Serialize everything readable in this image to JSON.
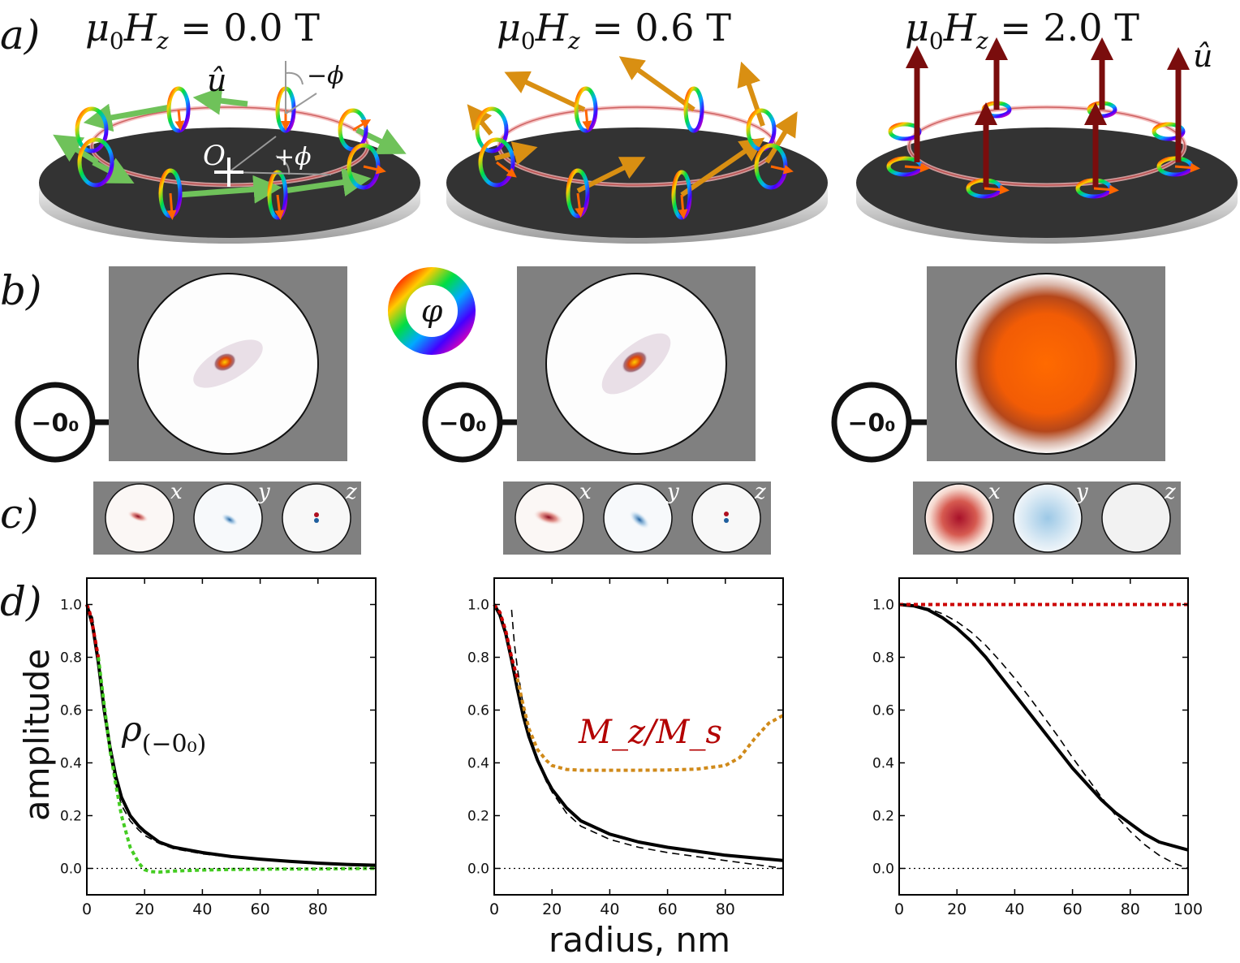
{
  "panel_labels": [
    "a)",
    "b)",
    "c)",
    "d)"
  ],
  "fields": [
    {
      "label": "μ₀H₂ = 0.0 T",
      "main": "μ",
      "sub0": "0",
      "H": "H",
      "subz": "z",
      "rest": " = 0.0 T"
    },
    {
      "label": "μ₀H₂ = 0.6 T",
      "main": "μ",
      "sub0": "0",
      "H": "H",
      "subz": "z",
      "rest": " = 0.6 T"
    },
    {
      "label": "μ₀H₂ = 2.0 T",
      "main": "μ",
      "sub0": "0",
      "H": "H",
      "subz": "z",
      "rest": " = 2.0 T"
    }
  ],
  "panel_a": {
    "u_hat_left": "û",
    "u_hat_right": "û",
    "minus_phi": "−ϕ",
    "plus_phi": "+ϕ",
    "origin": "O",
    "colors": {
      "disk_top": "#333333",
      "disk_side": "#d9d9d9",
      "green_arrow": "#6fc25a",
      "orange_arrow": "#d98f12",
      "red_arrow": "#7a0d0d",
      "ring_glow": "#f2b3b3"
    }
  },
  "panel_b": {
    "mode_label": "−0₀",
    "colorwheel_symbol": "φ",
    "background": "#808080"
  },
  "panel_c": {
    "components": [
      "x",
      "y",
      "z"
    ]
  },
  "chart_data": [
    {
      "type": "line",
      "xlabel": "",
      "ylabel": "amplitude",
      "xlim": [
        0,
        100
      ],
      "ylim": [
        -0.1,
        1.1
      ],
      "yticks": [
        "0.0",
        "0.2",
        "0.4",
        "0.6",
        "0.8",
        "1.0"
      ],
      "xticks": [
        "0",
        "20",
        "40",
        "60",
        "80"
      ],
      "annotation": {
        "text_main": "ρ",
        "text_sub": "(−0₀)"
      },
      "series": [
        {
          "style": "solid-black",
          "x": [
            0,
            2,
            4,
            6,
            8,
            10,
            12,
            15,
            18,
            20,
            25,
            30,
            40,
            50,
            60,
            70,
            80,
            90,
            100
          ],
          "y": [
            1.0,
            0.92,
            0.78,
            0.6,
            0.46,
            0.35,
            0.27,
            0.2,
            0.16,
            0.14,
            0.1,
            0.08,
            0.06,
            0.045,
            0.035,
            0.027,
            0.02,
            0.015,
            0.012
          ]
        },
        {
          "style": "dashed-black",
          "x": [
            0,
            2,
            4,
            6,
            8,
            10,
            12,
            15,
            18,
            20,
            25,
            30,
            40,
            50,
            60,
            70,
            80,
            90,
            100
          ],
          "y": [
            1.0,
            0.95,
            0.8,
            0.6,
            0.43,
            0.32,
            0.24,
            0.18,
            0.145,
            0.125,
            0.095,
            0.075,
            0.055,
            0.043,
            0.033,
            0.025,
            0.018,
            0.012,
            0.008
          ]
        },
        {
          "style": "dotted-red",
          "x": [
            0,
            1,
            2,
            3,
            4
          ],
          "y": [
            1.0,
            0.97,
            0.92,
            0.86,
            0.8
          ]
        },
        {
          "style": "dotted-green",
          "x": [
            4,
            6,
            8,
            10,
            12,
            15,
            18,
            20,
            22,
            25,
            30,
            40,
            50,
            60,
            70,
            80,
            90,
            100
          ],
          "y": [
            0.8,
            0.62,
            0.45,
            0.32,
            0.2,
            0.08,
            0.02,
            -0.005,
            -0.012,
            -0.014,
            -0.01,
            -0.006,
            -0.004,
            -0.003,
            -0.002,
            -0.002,
            -0.001,
            0.0
          ]
        },
        {
          "style": "dotted-zero",
          "x": [
            0,
            100
          ],
          "y": [
            0,
            0
          ]
        }
      ]
    },
    {
      "type": "line",
      "xlabel": "radius, nm",
      "ylabel": "",
      "xlim": [
        0,
        100
      ],
      "ylim": [
        -0.1,
        1.1
      ],
      "yticks": [
        "0.0",
        "0.2",
        "0.4",
        "0.6",
        "0.8",
        "1.0"
      ],
      "xticks": [
        "0",
        "20",
        "40",
        "60",
        "80"
      ],
      "annotation": {
        "text": "M_z/M_s",
        "color": "#b30000"
      },
      "series": [
        {
          "style": "solid-black",
          "x": [
            0,
            2,
            4,
            6,
            8,
            10,
            12,
            15,
            18,
            20,
            25,
            30,
            40,
            50,
            60,
            70,
            80,
            90,
            100
          ],
          "y": [
            1.0,
            0.96,
            0.89,
            0.79,
            0.68,
            0.58,
            0.5,
            0.41,
            0.34,
            0.3,
            0.23,
            0.18,
            0.13,
            0.1,
            0.08,
            0.065,
            0.05,
            0.04,
            0.03
          ]
        },
        {
          "style": "dashed-black",
          "x": [
            6,
            7,
            8,
            10,
            12,
            15,
            18,
            20,
            25,
            30,
            40,
            50,
            60,
            70,
            80,
            90,
            100
          ],
          "y": [
            0.98,
            0.85,
            0.76,
            0.62,
            0.52,
            0.41,
            0.33,
            0.29,
            0.21,
            0.16,
            0.11,
            0.08,
            0.06,
            0.045,
            0.03,
            0.015,
            0.0
          ]
        },
        {
          "style": "dotted-red",
          "x": [
            0,
            2,
            4,
            6,
            8
          ],
          "y": [
            1.0,
            0.97,
            0.9,
            0.8,
            0.72
          ]
        },
        {
          "style": "dotted-orange",
          "x": [
            8,
            10,
            12,
            15,
            18,
            20,
            25,
            30,
            40,
            50,
            60,
            70,
            80,
            85,
            90,
            95,
            100
          ],
          "y": [
            0.72,
            0.62,
            0.53,
            0.45,
            0.41,
            0.39,
            0.375,
            0.372,
            0.372,
            0.372,
            0.373,
            0.376,
            0.39,
            0.42,
            0.49,
            0.55,
            0.58
          ]
        },
        {
          "style": "dotted-zero",
          "x": [
            0,
            100
          ],
          "y": [
            0,
            0
          ]
        }
      ]
    },
    {
      "type": "line",
      "xlabel": "",
      "ylabel": "",
      "xlim": [
        0,
        100
      ],
      "ylim": [
        -0.1,
        1.1
      ],
      "yticks": [
        "0.0",
        "0.2",
        "0.4",
        "0.6",
        "0.8",
        "1.0"
      ],
      "xticks": [
        "0",
        "20",
        "40",
        "60",
        "80",
        "100"
      ],
      "series": [
        {
          "style": "solid-black",
          "x": [
            0,
            5,
            10,
            15,
            20,
            25,
            30,
            35,
            40,
            45,
            50,
            55,
            60,
            65,
            70,
            75,
            80,
            85,
            90,
            95,
            100
          ],
          "y": [
            1.0,
            0.995,
            0.98,
            0.95,
            0.91,
            0.86,
            0.8,
            0.73,
            0.66,
            0.59,
            0.52,
            0.45,
            0.38,
            0.32,
            0.26,
            0.21,
            0.17,
            0.13,
            0.1,
            0.085,
            0.07
          ]
        },
        {
          "style": "dashed-black",
          "x": [
            0,
            5,
            10,
            15,
            20,
            25,
            30,
            35,
            40,
            45,
            50,
            55,
            60,
            65,
            70,
            75,
            80,
            85,
            90,
            95,
            100
          ],
          "y": [
            1.0,
            0.995,
            0.985,
            0.965,
            0.935,
            0.895,
            0.845,
            0.785,
            0.72,
            0.65,
            0.575,
            0.5,
            0.42,
            0.345,
            0.27,
            0.2,
            0.14,
            0.09,
            0.05,
            0.02,
            0.0
          ]
        },
        {
          "style": "dotted-red",
          "x": [
            0,
            100
          ],
          "y": [
            1.0,
            1.0
          ]
        },
        {
          "style": "dotted-zero",
          "x": [
            0,
            100
          ],
          "y": [
            0,
            0
          ]
        }
      ]
    }
  ]
}
